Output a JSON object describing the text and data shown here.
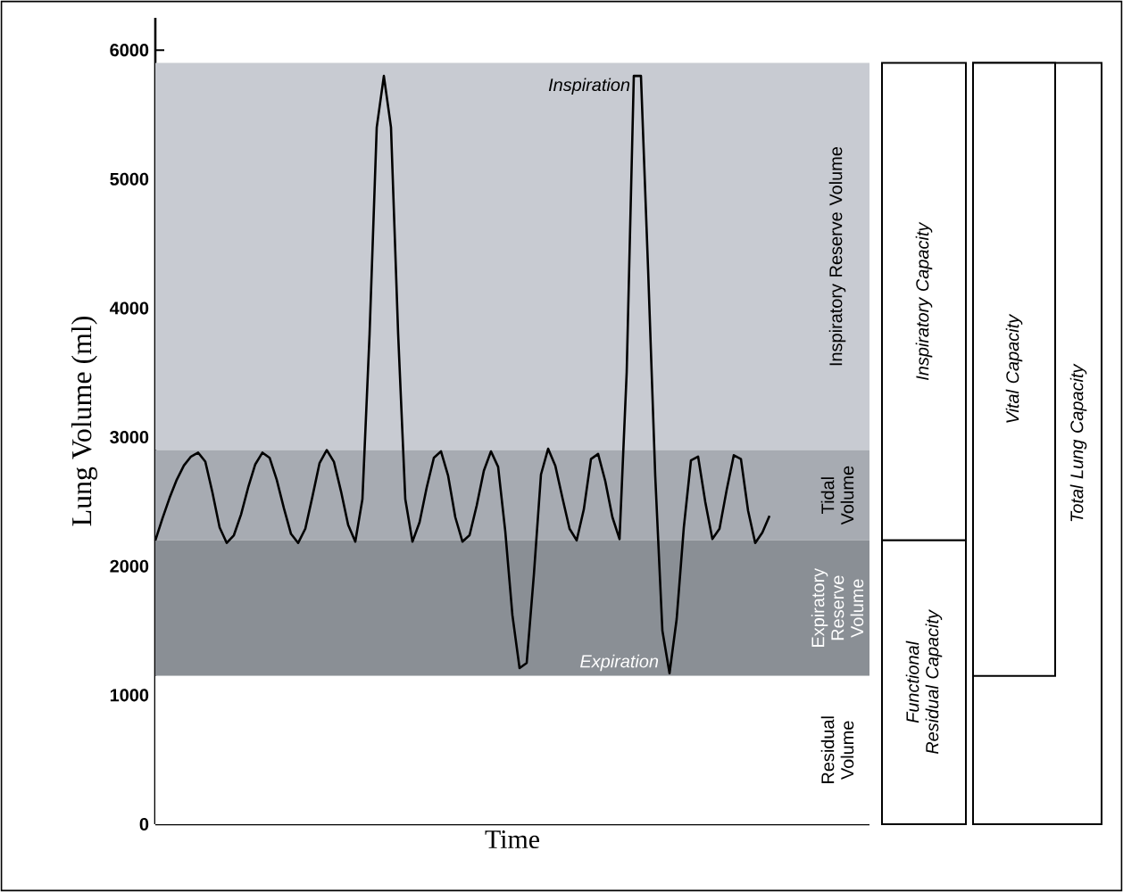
{
  "chart_data": [
    {
      "type": "line",
      "xlabel": "Time",
      "ylabel": "Lung Volume (ml)",
      "color": "#000000",
      "categories": [
        null,
        null,
        null,
        null,
        null,
        null,
        null,
        null,
        null,
        null,
        null,
        null,
        null,
        null,
        null,
        null,
        null,
        null,
        null,
        null,
        null,
        null,
        null,
        null,
        null,
        null,
        null,
        null,
        null,
        null,
        null,
        null,
        null,
        null,
        null,
        null,
        null,
        null,
        null,
        null,
        null,
        null,
        null,
        null,
        null,
        null,
        null,
        null,
        null,
        null,
        null,
        null,
        null,
        null,
        null,
        null,
        null,
        null,
        null,
        null,
        null,
        null,
        null,
        null,
        null,
        null,
        null,
        null,
        null,
        null,
        null,
        null,
        null,
        null,
        null,
        null,
        null,
        null,
        null,
        null,
        null,
        null,
        null,
        null,
        null,
        null,
        null,
        null,
        null,
        null,
        null,
        null,
        null,
        null,
        null,
        null,
        null,
        null,
        null,
        null,
        null
      ],
      "values": [
        2200,
        2370,
        2530,
        2670,
        2780,
        2850,
        2880,
        2810,
        2570,
        2300,
        2180,
        2240,
        2400,
        2610,
        2790,
        2880,
        2840,
        2670,
        2450,
        2250,
        2180,
        2290,
        2540,
        2800,
        2900,
        2810,
        2580,
        2320,
        2190,
        2520,
        3800,
        5400,
        5800,
        5400,
        3800,
        2520,
        2190,
        2340,
        2610,
        2840,
        2890,
        2700,
        2380,
        2190,
        2240,
        2470,
        2740,
        2890,
        2770,
        2270,
        1620,
        1210,
        1250,
        1930,
        2710,
        2910,
        2780,
        2530,
        2290,
        2200,
        2440,
        2830,
        2870,
        2660,
        2380,
        2210,
        3500,
        5800,
        5800,
        4300,
        2700,
        1500,
        1170,
        1590,
        2300,
        2820,
        2850,
        2500,
        2210,
        2290,
        2590,
        2860,
        2830,
        2430,
        2180,
        2260,
        2390,
        null,
        null,
        null,
        null,
        null,
        null,
        null,
        null,
        null,
        null,
        null,
        null,
        null,
        null
      ],
      "ylim": [
        0,
        6250
      ],
      "yticks": [
        0,
        1000,
        2000,
        3000,
        4000,
        5000,
        6000
      ],
      "bands": [
        {
          "axis": "y",
          "from": 2900,
          "to": 5900,
          "label": "Inspiratory Reserve Volume",
          "color": "#c8cbd2"
        },
        {
          "axis": "y",
          "from": 2200,
          "to": 2900,
          "label": "Tidal Volume",
          "color": "#a7abb2"
        },
        {
          "axis": "y",
          "from": 1150,
          "to": 2200,
          "label": "Expiratory Reserve Volume",
          "color": "#8a8f95"
        },
        {
          "axis": "y",
          "from": 0,
          "to": 1150,
          "label": "Residual Volume",
          "color": "#ffffff"
        }
      ],
      "annotations": [
        "Inspiration",
        "Expiration"
      ]
    },
    {
      "type": "other",
      "annotations": [
        "Inspiratory Capacity",
        "Functional Residual Capacity",
        "Vital Capacity",
        "Total Lung Capacity"
      ]
    }
  ]
}
